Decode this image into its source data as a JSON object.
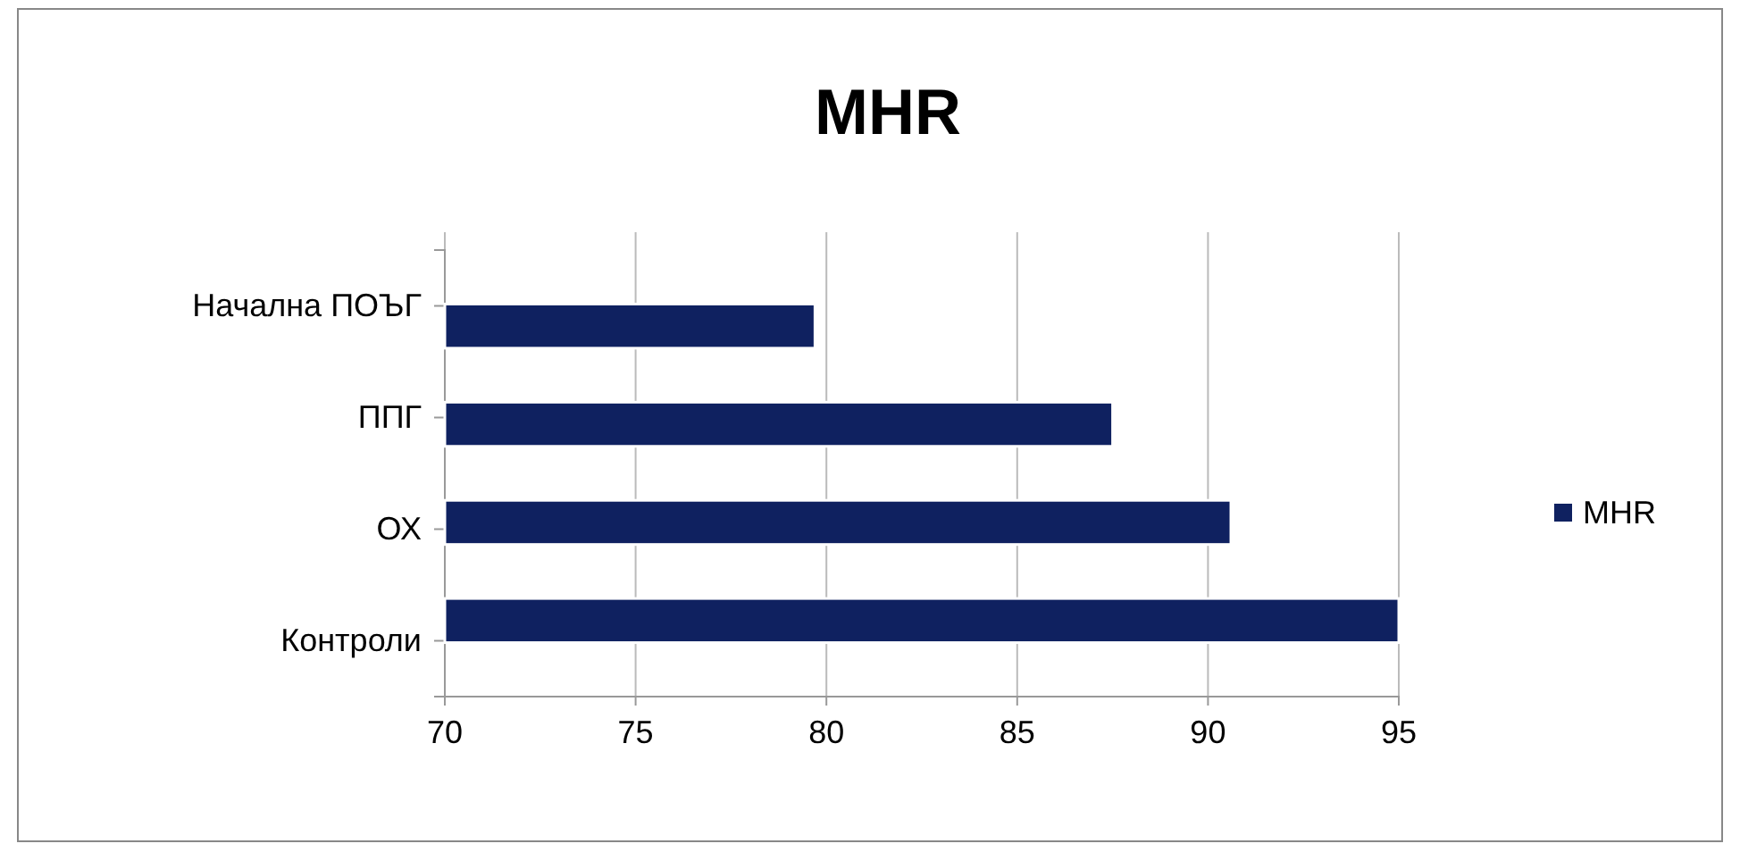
{
  "chart_data": {
    "type": "bar",
    "orientation": "horizontal",
    "title": "MHR",
    "categories": [
      "Начална ПОЪГ",
      "ППГ",
      "ОХ",
      "Контроли"
    ],
    "series": [
      {
        "name": "MHR",
        "color": "#0f2160",
        "values": [
          79.7,
          87.5,
          90.6,
          95
        ]
      }
    ],
    "xlim": [
      70,
      95
    ],
    "xticks": [
      70,
      75,
      80,
      85,
      90,
      95
    ],
    "grid": "x",
    "legend": "right"
  }
}
